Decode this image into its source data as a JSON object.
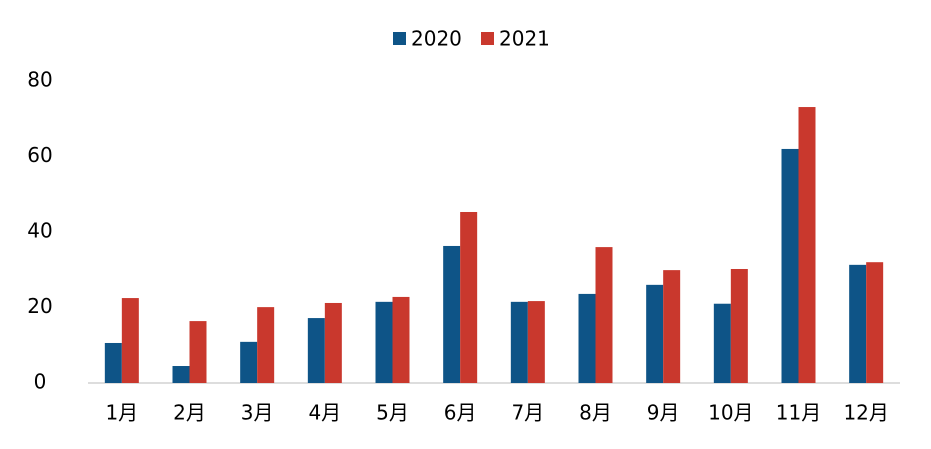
{
  "chart_data": {
    "type": "bar",
    "categories": [
      "1月",
      "2月",
      "3月",
      "4月",
      "5月",
      "6月",
      "7月",
      "8月",
      "9月",
      "10月",
      "11月",
      "12月"
    ],
    "series": [
      {
        "name": "2020",
        "color": "#0e5487",
        "values": [
          10.6,
          4.5,
          10.9,
          17.2,
          21.5,
          36.3,
          21.5,
          23.6,
          26,
          21,
          62,
          31.3
        ]
      },
      {
        "name": "2021",
        "color": "#c9382d",
        "values": [
          22.5,
          16.4,
          20.1,
          21.2,
          22.8,
          45.3,
          21.7,
          36,
          29.9,
          30.2,
          73.1,
          32
        ]
      }
    ],
    "ylim": [
      0,
      80
    ],
    "yticks": [
      0,
      20,
      40,
      60,
      80
    ],
    "grid": false,
    "legend": "top"
  }
}
